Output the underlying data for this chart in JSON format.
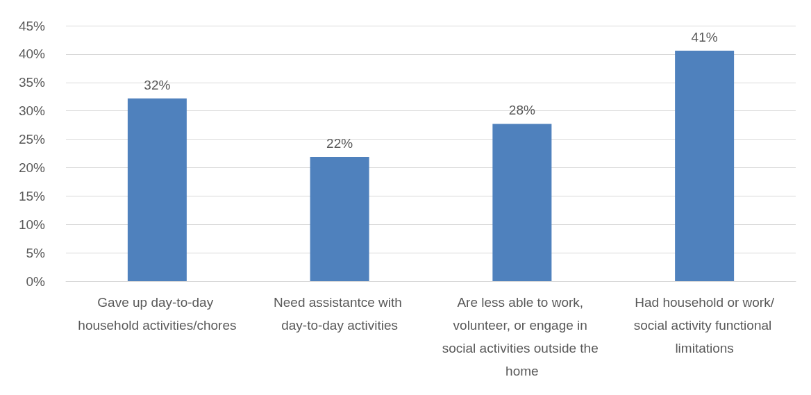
{
  "chart_data": {
    "type": "bar",
    "categories": [
      "Gave up day-to-day household activities/chores",
      "Need assistantce with day-to-day activities",
      "Are less able to work, volunteer, or engage in social activities outside the home",
      "Had household or work/social activity functional limitations"
    ],
    "values": [
      32.2,
      21.9,
      27.7,
      40.6
    ],
    "value_labels": [
      "32%",
      "22%",
      "28%",
      "41%"
    ],
    "color": "#4f81bd",
    "ylim": [
      0,
      45
    ],
    "yticks": [
      {
        "value": 0,
        "label": "0%"
      },
      {
        "value": 5,
        "label": "5%"
      },
      {
        "value": 10,
        "label": "10%"
      },
      {
        "value": 15,
        "label": "15%"
      },
      {
        "value": 20,
        "label": "20%"
      },
      {
        "value": 25,
        "label": "25%"
      },
      {
        "value": 30,
        "label": "30%"
      },
      {
        "value": 35,
        "label": "35%"
      },
      {
        "value": 40,
        "label": "40%"
      },
      {
        "value": 45,
        "label": "45%"
      }
    ],
    "grid": "y"
  }
}
